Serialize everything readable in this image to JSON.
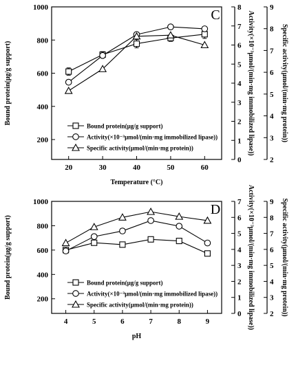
{
  "chart_data": [
    {
      "type": "line",
      "panel_label": "C",
      "xlabel": "Temperature (°C)",
      "ylabel_left": "Bound protein(μg/g support)",
      "ylabel_right1": "Activity(×10⁻³μmol/(min·mg immobilized lipase))",
      "ylabel_right2": "Specific activity(μmol/(min·mg protein))",
      "x": [
        20,
        30,
        40,
        50,
        60
      ],
      "xlim": [
        15,
        65
      ],
      "x_ticks": [
        20,
        30,
        40,
        50,
        60
      ],
      "y_left_lim": [
        80,
        1000
      ],
      "y_left_ticks": [
        200,
        400,
        600,
        800,
        1000
      ],
      "y_right1_lim": [
        0,
        8
      ],
      "y_right1_ticks": [
        0,
        1,
        2,
        3,
        4,
        5,
        6,
        7,
        8
      ],
      "y_right2_lim": [
        2,
        9
      ],
      "y_right2_ticks": [
        2,
        3,
        4,
        5,
        6,
        7,
        8,
        9
      ],
      "legend_position": "lower-right",
      "series": [
        {
          "name": "Bound protein(μg/g support)",
          "marker": "square",
          "axis": "left",
          "values": [
            610,
            712,
            778,
            812,
            835
          ],
          "error": [
            22,
            18,
            25,
            20,
            25
          ]
        },
        {
          "name": "Activity(×10⁻³μmol/(min·mg immobilized lipase))",
          "marker": "circle",
          "axis": "right1",
          "values": [
            4.05,
            5.45,
            6.55,
            6.95,
            6.85
          ],
          "error": [
            0,
            0,
            0,
            0,
            0
          ]
        },
        {
          "name": "Specific activity(μmol/(min·mg protein))",
          "marker": "triangle",
          "axis": "right2",
          "values": [
            5.15,
            6.15,
            7.65,
            7.7,
            7.25
          ],
          "error": [
            0,
            0,
            0,
            0,
            0
          ]
        }
      ]
    },
    {
      "type": "line",
      "panel_label": "D",
      "xlabel": "pH",
      "ylabel_left": "Bound protein(μg/g support)",
      "ylabel_right1": "Activity(×10⁻³μmol/(min·mg immobilized lipase))",
      "ylabel_right2": "Specific activity(μmol/(min·mg protein))",
      "x": [
        4,
        5,
        6,
        7,
        8,
        9
      ],
      "xlim": [
        3.5,
        9.5
      ],
      "x_ticks": [
        4,
        5,
        6,
        7,
        8,
        9
      ],
      "y_left_lim": [
        80,
        1000
      ],
      "y_left_ticks": [
        200,
        400,
        600,
        800,
        1000
      ],
      "y_right1_lim": [
        0,
        7
      ],
      "y_right1_ticks": [
        0,
        1,
        2,
        3,
        4,
        5,
        6,
        7
      ],
      "y_right2_lim": [
        2,
        9
      ],
      "y_right2_ticks": [
        2,
        3,
        4,
        5,
        6,
        7,
        8,
        9
      ],
      "legend_position": "lower-right",
      "series": [
        {
          "name": "Bound protein(μg/g support)",
          "marker": "square",
          "axis": "left",
          "values": [
            600,
            660,
            645,
            688,
            675,
            572
          ],
          "error": [
            15,
            18,
            15,
            15,
            15,
            15
          ]
        },
        {
          "name": "Activity(×10⁻³μmol/(min·mg immobilized lipase))",
          "marker": "circle",
          "axis": "right1",
          "values": [
            3.9,
            4.8,
            5.15,
            5.8,
            5.45,
            4.4
          ],
          "error": [
            0,
            0.12,
            0.15,
            0,
            0,
            0.08
          ]
        },
        {
          "name": "Specific activity(μmol/(min·mg protein))",
          "marker": "triangle",
          "axis": "right2",
          "values": [
            6.4,
            7.4,
            8.0,
            8.35,
            8.05,
            7.8
          ],
          "error": [
            0,
            0,
            0,
            0,
            0,
            0
          ]
        }
      ]
    }
  ]
}
